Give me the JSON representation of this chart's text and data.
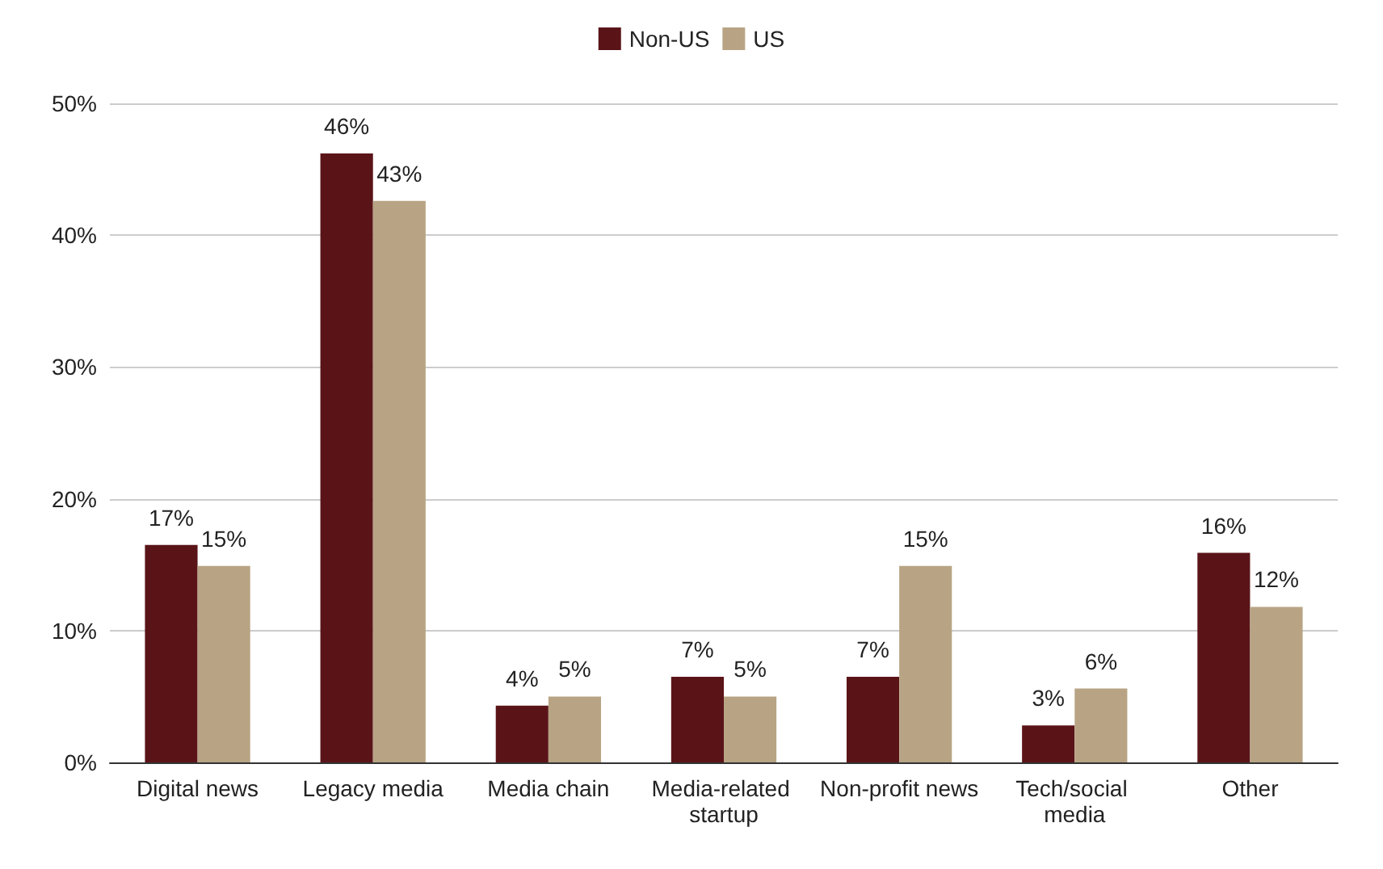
{
  "chart_data": {
    "type": "bar",
    "categories": [
      "Digital news",
      "Legacy media",
      "Media chain",
      "Media-related startup",
      "Non-profit news",
      "Tech/social media",
      "Other"
    ],
    "series": [
      {
        "name": "Non-US",
        "color": "#5a1418",
        "values": [
          16.5,
          46.2,
          4.3,
          6.5,
          6.5,
          2.8,
          15.9
        ],
        "value_labels": [
          "17%",
          "46%",
          "4%",
          "7%",
          "7%",
          "3%",
          "16%"
        ]
      },
      {
        "name": "US",
        "color": "#b8a484",
        "values": [
          14.9,
          42.6,
          5.0,
          5.0,
          14.9,
          5.6,
          11.8
        ],
        "value_labels": [
          "15%",
          "43%",
          "5%",
          "5%",
          "15%",
          "6%",
          "12%"
        ]
      }
    ],
    "ylim": [
      0,
      50
    ],
    "yticks": [
      {
        "value": 0,
        "label": "0%"
      },
      {
        "value": 10,
        "label": "10%"
      },
      {
        "value": 20,
        "label": "20%"
      },
      {
        "value": 30,
        "label": "30%"
      },
      {
        "value": 40,
        "label": "40%"
      },
      {
        "value": 50,
        "label": "50%"
      }
    ],
    "grid": "y",
    "legend": "top"
  }
}
